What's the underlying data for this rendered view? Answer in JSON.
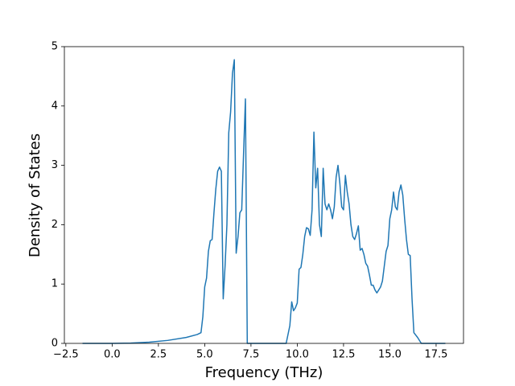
{
  "chart_data": {
    "type": "line",
    "xlabel": "Frequency (THz)",
    "ylabel": "Density of States",
    "x": [
      -1.6,
      0,
      1,
      2,
      3,
      4,
      4.6,
      4.8,
      4.9,
      5.0,
      5.1,
      5.2,
      5.3,
      5.4,
      5.5,
      5.6,
      5.7,
      5.8,
      5.9,
      6.0,
      6.1,
      6.2,
      6.3,
      6.4,
      6.5,
      6.6,
      6.7,
      6.8,
      6.9,
      7.0,
      7.1,
      7.2,
      7.3,
      9.4,
      9.6,
      9.7,
      9.8,
      9.9,
      10.0,
      10.1,
      10.2,
      10.3,
      10.4,
      10.5,
      10.6,
      10.7,
      10.8,
      10.9,
      11.0,
      11.1,
      11.2,
      11.3,
      11.4,
      11.5,
      11.6,
      11.7,
      11.8,
      11.9,
      12.0,
      12.1,
      12.2,
      12.3,
      12.4,
      12.5,
      12.6,
      12.7,
      12.8,
      12.9,
      13.0,
      13.1,
      13.2,
      13.3,
      13.4,
      13.5,
      13.6,
      13.7,
      13.8,
      13.9,
      14.0,
      14.1,
      14.2,
      14.3,
      14.4,
      14.5,
      14.6,
      14.7,
      14.8,
      14.9,
      15.0,
      15.1,
      15.2,
      15.3,
      15.4,
      15.5,
      15.6,
      15.7,
      15.8,
      15.9,
      16.0,
      16.1,
      16.2,
      16.3,
      16.5,
      16.7,
      18.0
    ],
    "series": [
      {
        "name": "DOS",
        "color": "#1f77b4",
        "values": [
          0,
          0,
          0.005,
          0.02,
          0.05,
          0.1,
          0.15,
          0.18,
          0.45,
          0.95,
          1.1,
          1.55,
          1.73,
          1.75,
          2.2,
          2.6,
          2.9,
          2.97,
          2.9,
          0.75,
          1.3,
          2.0,
          3.55,
          3.9,
          4.55,
          4.78,
          1.52,
          1.8,
          2.2,
          2.25,
          3.2,
          4.12,
          0,
          0,
          0.3,
          0.7,
          0.55,
          0.6,
          0.68,
          1.25,
          1.28,
          1.5,
          1.8,
          1.95,
          1.93,
          1.82,
          2.25,
          3.56,
          2.62,
          2.95,
          2.0,
          1.8,
          2.95,
          2.35,
          2.25,
          2.35,
          2.25,
          2.1,
          2.3,
          2.8,
          3.0,
          2.7,
          2.3,
          2.25,
          2.83,
          2.55,
          2.35,
          2.0,
          1.8,
          1.75,
          1.85,
          1.98,
          1.57,
          1.6,
          1.5,
          1.35,
          1.3,
          1.15,
          0.98,
          0.98,
          0.9,
          0.85,
          0.9,
          0.95,
          1.05,
          1.3,
          1.55,
          1.65,
          2.1,
          2.25,
          2.55,
          2.3,
          2.25,
          2.55,
          2.67,
          2.5,
          2.1,
          1.75,
          1.5,
          1.48,
          0.75,
          0.18,
          0.1,
          0,
          0
        ]
      }
    ],
    "xlim": [
      -2.58,
      18.98
    ],
    "xticks": [
      {
        "value": -2.5,
        "label": "−2.5"
      },
      {
        "value": 0,
        "label": "0.0"
      },
      2.5,
      {
        "value": 5,
        "label": "5.0"
      },
      7.5,
      {
        "value": 10,
        "label": "10.0"
      },
      12.5,
      {
        "value": 15,
        "label": "15.0"
      },
      17.5
    ],
    "ylim": [
      0,
      5
    ],
    "yticks": [
      0,
      1,
      2,
      3,
      4,
      5
    ],
    "grid": false
  }
}
